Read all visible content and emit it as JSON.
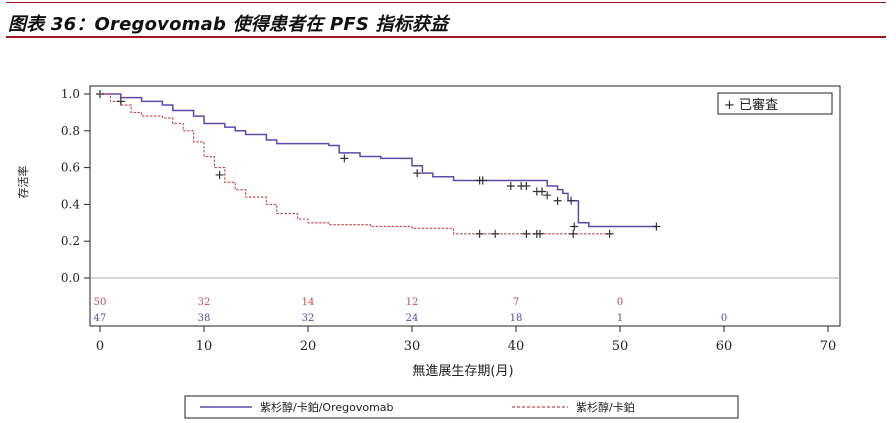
{
  "header": {
    "title": "图表 36：Oregovomab 使得患者在 PFS 指标获益"
  },
  "colors": {
    "oregovomab": "#5b4aa8",
    "control": "#c8464f",
    "axis": "#222222",
    "zero": "#aaaaaa"
  },
  "chart_data": {
    "type": "line",
    "title": "",
    "xlabel": "無進展生存期(月)",
    "ylabel": "存活率",
    "xlim": [
      0,
      70
    ],
    "ylim": [
      0.0,
      1.0
    ],
    "xticks": [
      "0",
      "10",
      "20",
      "30",
      "40",
      "50",
      "60",
      "70"
    ],
    "yticks": [
      "0.0",
      "0.2",
      "0.4",
      "0.6",
      "0.8",
      "1.0"
    ],
    "grid": false,
    "legend_inset": "+ 已審査",
    "legend": {
      "placement": "bottom",
      "entries": [
        "紫杉醇/卡鉑/Oregovomab",
        "紫杉醇/卡鉑"
      ]
    },
    "series": [
      {
        "name": "紫杉醇/卡鉑/Oregovomab",
        "style": "solid",
        "steps": [
          [
            0,
            1.0
          ],
          [
            2,
            0.98
          ],
          [
            4,
            0.96
          ],
          [
            6,
            0.94
          ],
          [
            7,
            0.91
          ],
          [
            9,
            0.88
          ],
          [
            10,
            0.84
          ],
          [
            12,
            0.82
          ],
          [
            13,
            0.8
          ],
          [
            14,
            0.78
          ],
          [
            16,
            0.75
          ],
          [
            17,
            0.73
          ],
          [
            22,
            0.72
          ],
          [
            23,
            0.68
          ],
          [
            25,
            0.66
          ],
          [
            27,
            0.65
          ],
          [
            30,
            0.61
          ],
          [
            31,
            0.57
          ],
          [
            32,
            0.55
          ],
          [
            34,
            0.53
          ],
          [
            36,
            0.53
          ],
          [
            43,
            0.5
          ],
          [
            44,
            0.48
          ],
          [
            44.5,
            0.46
          ],
          [
            45,
            0.42
          ],
          [
            46,
            0.3
          ],
          [
            47,
            0.28
          ],
          [
            53.5,
            0.28
          ]
        ],
        "censored": [
          [
            0,
            1.0
          ],
          [
            23.5,
            0.65
          ],
          [
            30.5,
            0.57
          ],
          [
            36.5,
            0.53
          ],
          [
            36.8,
            0.53
          ],
          [
            39.5,
            0.5
          ],
          [
            40.5,
            0.5
          ],
          [
            41,
            0.5
          ],
          [
            42,
            0.47
          ],
          [
            42.5,
            0.47
          ],
          [
            43,
            0.45
          ],
          [
            44,
            0.42
          ],
          [
            45.3,
            0.42
          ],
          [
            45.6,
            0.28
          ],
          [
            53.5,
            0.28
          ]
        ]
      },
      {
        "name": "紫杉醇/卡鉑",
        "style": "dashed",
        "steps": [
          [
            0,
            1.0
          ],
          [
            1,
            0.96
          ],
          [
            2,
            0.94
          ],
          [
            3,
            0.9
          ],
          [
            4,
            0.88
          ],
          [
            6,
            0.87
          ],
          [
            7,
            0.84
          ],
          [
            8,
            0.8
          ],
          [
            9,
            0.74
          ],
          [
            10,
            0.66
          ],
          [
            11,
            0.6
          ],
          [
            12,
            0.52
          ],
          [
            13,
            0.48
          ],
          [
            14,
            0.44
          ],
          [
            16,
            0.4
          ],
          [
            17,
            0.35
          ],
          [
            19,
            0.32
          ],
          [
            20,
            0.3
          ],
          [
            22,
            0.29
          ],
          [
            26,
            0.28
          ],
          [
            30,
            0.27
          ],
          [
            34,
            0.24
          ],
          [
            49,
            0.24
          ]
        ],
        "censored": [
          [
            2,
            0.96
          ],
          [
            11.5,
            0.56
          ],
          [
            36.5,
            0.24
          ],
          [
            38,
            0.24
          ],
          [
            41,
            0.24
          ],
          [
            42,
            0.24
          ],
          [
            42.3,
            0.24
          ],
          [
            45.5,
            0.24
          ],
          [
            49,
            0.24
          ]
        ]
      }
    ],
    "at_risk": {
      "times": [
        0,
        10,
        20,
        30,
        40,
        50,
        60
      ],
      "control": [
        "50",
        "32",
        "14",
        "12",
        "7",
        "0",
        ""
      ],
      "oregovomab": [
        "47",
        "38",
        "32",
        "24",
        "18",
        "1",
        "0"
      ]
    }
  }
}
